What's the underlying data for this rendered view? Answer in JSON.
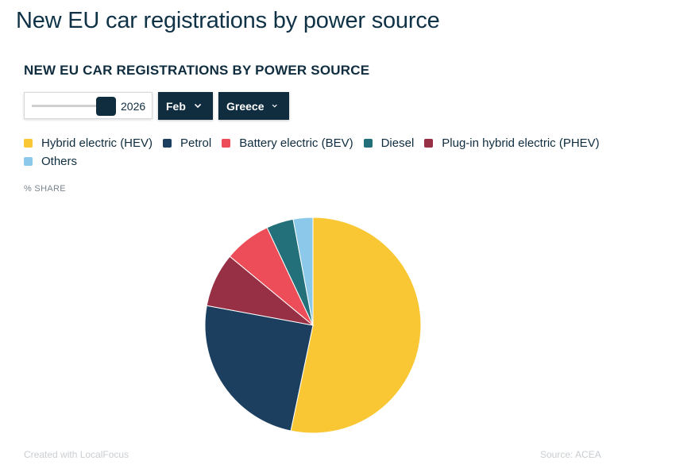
{
  "page": {
    "title": "New EU car registrations by power source"
  },
  "controls": {
    "year": "2026",
    "year_slider_position": 1.0,
    "month": "Feb",
    "country": "Greece"
  },
  "axis_note": "% SHARE",
  "footer": {
    "credit": "Created with LocalFocus",
    "source": "Source: ACEA"
  },
  "chart_data": {
    "type": "pie",
    "title": "NEW EU CAR REGISTRATIONS BY POWER SOURCE",
    "slices": [
      {
        "name": "Hybrid electric (HEV)",
        "value": 52.6,
        "color": "#f9c733"
      },
      {
        "name": "Petrol",
        "value": 24.3,
        "color": "#1c3f5f"
      },
      {
        "name": "Plug-in hybrid electric (PHEV)",
        "value": 8.0,
        "color": "#973044"
      },
      {
        "name": "Battery electric (BEV)",
        "value": 6.9,
        "color": "#ed4d58"
      },
      {
        "name": "Diesel",
        "value": 4.0,
        "color": "#23707a"
      },
      {
        "name": "Others",
        "value": 2.9,
        "color": "#8cc8e9"
      }
    ],
    "legend_order": [
      "Hybrid electric (HEV)",
      "Petrol",
      "Battery electric (BEV)",
      "Diesel",
      "Plug-in hybrid electric (PHEV)",
      "Others"
    ],
    "legend_position": "top",
    "direction": "clockwise from top"
  }
}
